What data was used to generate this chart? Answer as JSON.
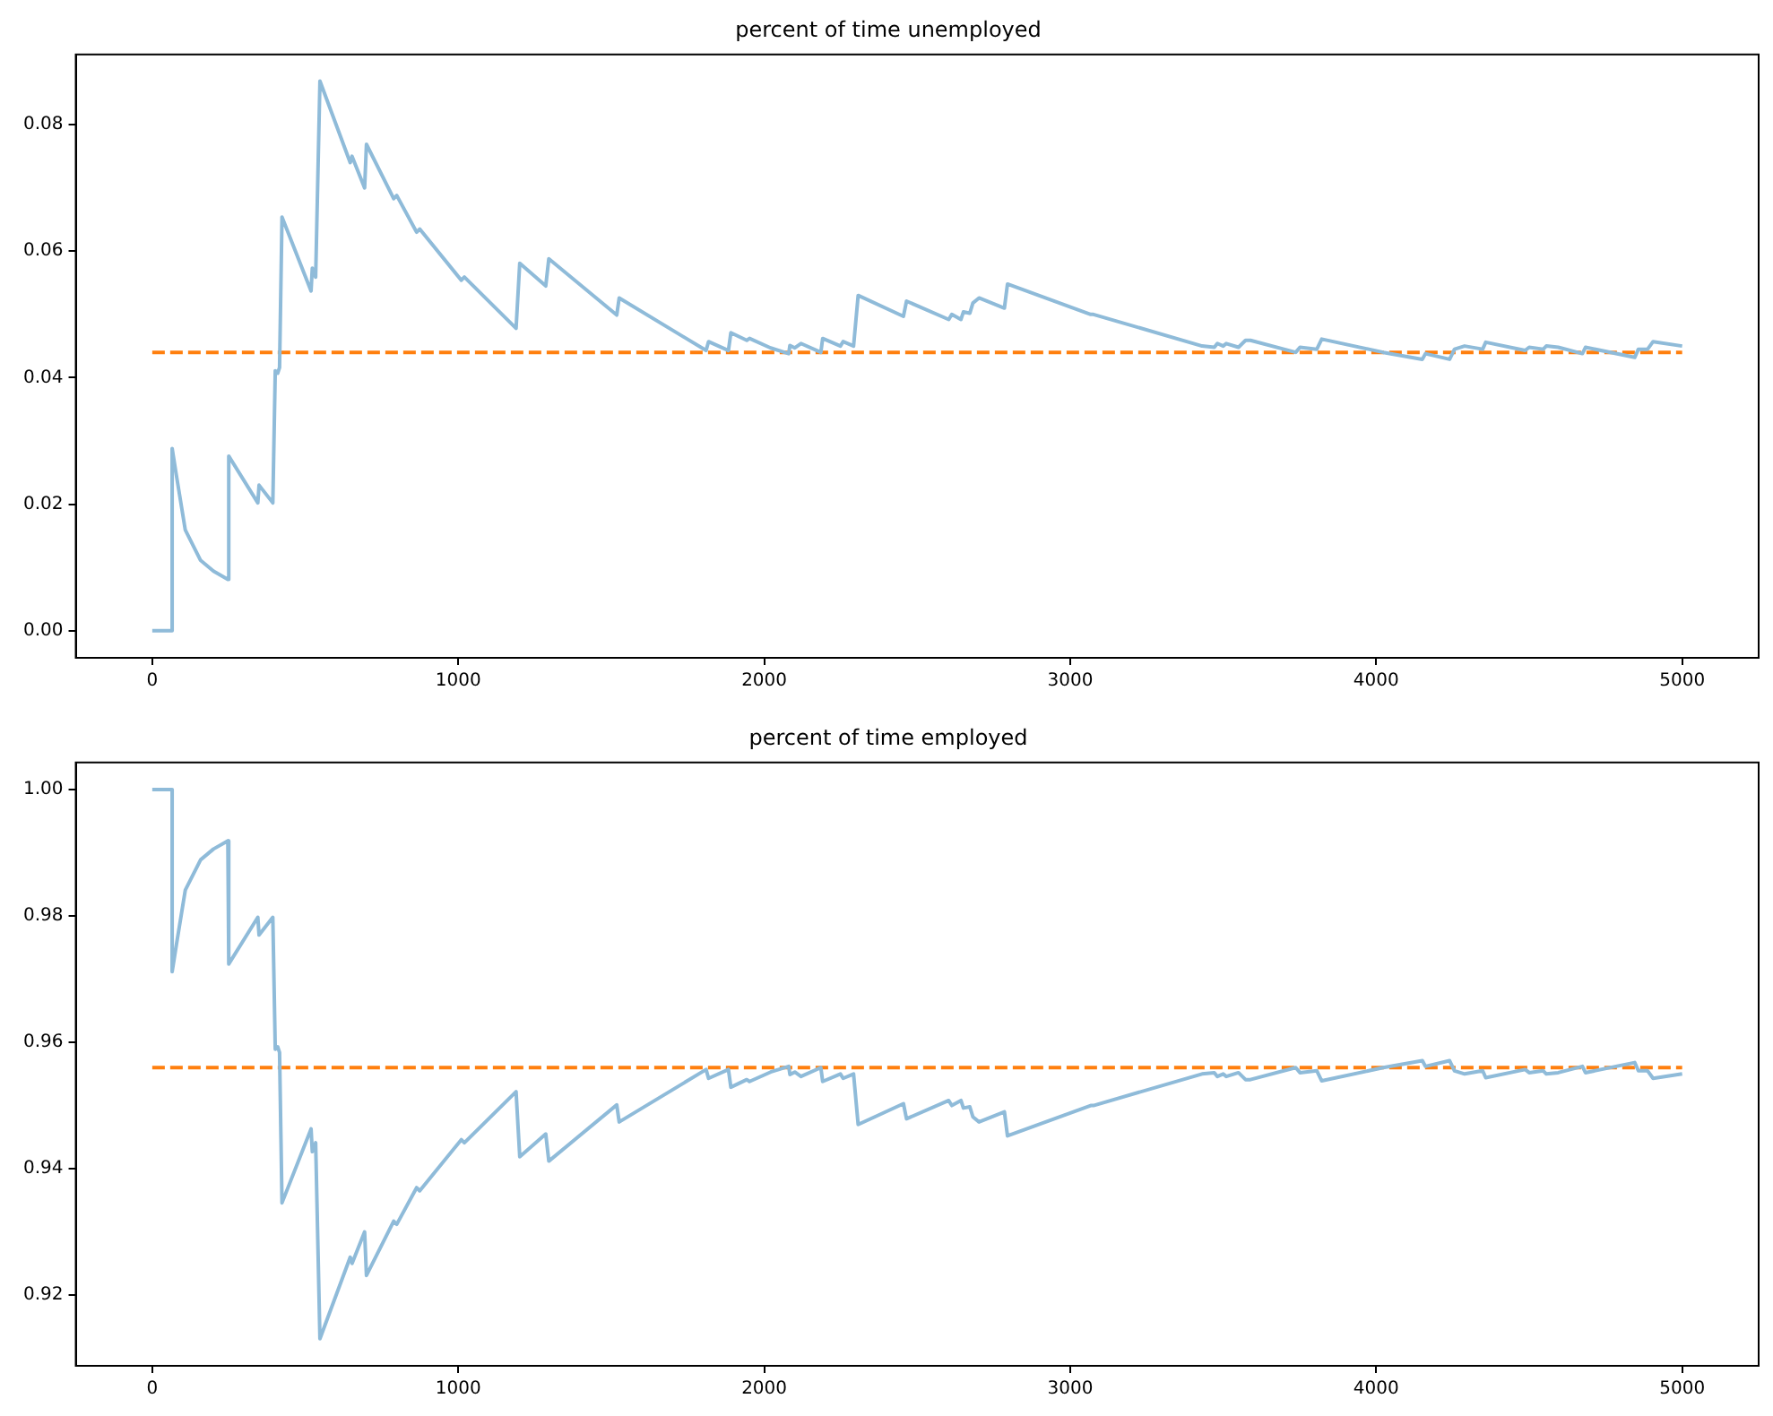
{
  "chart_data": [
    {
      "type": "line",
      "title": "percent of time unemployed",
      "x": [
        0,
        65,
        65,
        79,
        108,
        158,
        200,
        247,
        250,
        345,
        349,
        394,
        402,
        410,
        416,
        424,
        519,
        523,
        534,
        548,
        647,
        653,
        694,
        700,
        789,
        799,
        864,
        874,
        1010,
        1020,
        1189,
        1201,
        1286,
        1296,
        1518,
        1526,
        1810,
        1818,
        1883,
        1891,
        1943,
        1952,
        2021,
        2080,
        2084,
        2100,
        2120,
        2185,
        2191,
        2249,
        2258,
        2292,
        2307,
        2455,
        2465,
        2603,
        2613,
        2643,
        2651,
        2672,
        2682,
        2702,
        2785,
        2795,
        3067,
        3076,
        3431,
        3471,
        3481,
        3500,
        3510,
        3550,
        3573,
        3589,
        3737,
        3751,
        3806,
        3822,
        4023,
        4151,
        4161,
        4240,
        4256,
        4289,
        4348,
        4358,
        4487,
        4500,
        4546,
        4556,
        4595,
        4674,
        4684,
        4845,
        4857,
        4887,
        4905,
        5000
      ],
      "series": [
        {
          "color": "#8fbbd9",
          "values": [
            0,
            0,
            0.0288,
            0.0245,
            0.0159,
            0.0111,
            0.0094,
            0.0081,
            0.0276,
            0.0202,
            0.023,
            0.0202,
            0.0411,
            0.0407,
            0.0416,
            0.0654,
            0.0537,
            0.0573,
            0.0559,
            0.0869,
            0.074,
            0.075,
            0.07,
            0.0769,
            0.0683,
            0.0688,
            0.063,
            0.0635,
            0.0554,
            0.0559,
            0.0478,
            0.0581,
            0.0545,
            0.0588,
            0.0499,
            0.0526,
            0.0443,
            0.0457,
            0.0443,
            0.0471,
            0.0459,
            0.0462,
            0.0447,
            0.0438,
            0.0451,
            0.0447,
            0.0454,
            0.044,
            0.0462,
            0.045,
            0.0457,
            0.045,
            0.053,
            0.0497,
            0.0521,
            0.0492,
            0.05,
            0.0492,
            0.0504,
            0.0502,
            0.0518,
            0.0526,
            0.051,
            0.0548,
            0.05,
            0.05,
            0.045,
            0.0448,
            0.0454,
            0.045,
            0.0454,
            0.0448,
            0.0459,
            0.0459,
            0.044,
            0.0448,
            0.0445,
            0.0461,
            0.044,
            0.0429,
            0.0438,
            0.0429,
            0.0445,
            0.045,
            0.0445,
            0.0456,
            0.0443,
            0.0448,
            0.0445,
            0.045,
            0.0448,
            0.0438,
            0.0448,
            0.0432,
            0.0445,
            0.0445,
            0.0457,
            0.045
          ]
        },
        {
          "color": "#ff7f0e",
          "line_style": "dashed",
          "values": [
            0.044,
            0.044,
            0.044,
            0.044,
            0.044,
            0.044,
            0.044,
            0.044,
            0.044,
            0.044,
            0.044,
            0.044,
            0.044,
            0.044,
            0.044,
            0.044,
            0.044,
            0.044,
            0.044,
            0.044,
            0.044,
            0.044,
            0.044,
            0.044,
            0.044,
            0.044,
            0.044,
            0.044,
            0.044,
            0.044,
            0.044,
            0.044,
            0.044,
            0.044,
            0.044,
            0.044,
            0.044,
            0.044,
            0.044,
            0.044,
            0.044,
            0.044,
            0.044,
            0.044,
            0.044,
            0.044,
            0.044,
            0.044,
            0.044,
            0.044,
            0.044,
            0.044,
            0.044,
            0.044,
            0.044,
            0.044,
            0.044,
            0.044,
            0.044,
            0.044,
            0.044,
            0.044,
            0.044,
            0.044,
            0.044,
            0.044,
            0.044,
            0.044,
            0.044,
            0.044,
            0.044,
            0.044,
            0.044,
            0.044,
            0.044,
            0.044,
            0.044,
            0.044,
            0.044,
            0.044,
            0.044,
            0.044,
            0.044,
            0.044,
            0.044,
            0.044,
            0.044,
            0.044,
            0.044,
            0.044,
            0.044,
            0.044,
            0.044,
            0.044,
            0.044,
            0.044,
            0.044,
            0.044
          ]
        }
      ],
      "xlim": [
        -250,
        5250
      ],
      "xticks": [
        0,
        1000,
        2000,
        3000,
        4000,
        5000
      ],
      "ylim": [
        -0.0043,
        0.0911
      ],
      "yticks": [
        {
          "value": 0,
          "label": "0.00"
        },
        {
          "value": 0.02,
          "label": "0.02"
        },
        {
          "value": 0.04,
          "label": "0.04"
        },
        {
          "value": 0.06,
          "label": "0.06"
        },
        {
          "value": 0.08,
          "label": "0.08"
        }
      ],
      "grid": false,
      "legend": false
    },
    {
      "type": "line",
      "title": "percent of time employed",
      "x": [
        0,
        65,
        65,
        79,
        108,
        158,
        200,
        247,
        250,
        345,
        349,
        394,
        402,
        410,
        416,
        424,
        519,
        523,
        534,
        548,
        647,
        653,
        694,
        700,
        789,
        799,
        864,
        874,
        1010,
        1020,
        1189,
        1201,
        1286,
        1296,
        1518,
        1526,
        1810,
        1818,
        1883,
        1891,
        1943,
        1952,
        2021,
        2080,
        2084,
        2100,
        2120,
        2185,
        2191,
        2249,
        2258,
        2292,
        2307,
        2455,
        2465,
        2603,
        2613,
        2643,
        2651,
        2672,
        2682,
        2702,
        2785,
        2795,
        3067,
        3076,
        3431,
        3471,
        3481,
        3500,
        3510,
        3550,
        3573,
        3589,
        3737,
        3751,
        3806,
        3822,
        4023,
        4151,
        4161,
        4240,
        4256,
        4289,
        4348,
        4358,
        4487,
        4500,
        4546,
        4556,
        4595,
        4674,
        4684,
        4845,
        4857,
        4887,
        4905,
        5000
      ],
      "series": [
        {
          "color": "#8fbbd9",
          "values": [
            1,
            1,
            0.9712,
            0.9755,
            0.9841,
            0.9889,
            0.9906,
            0.9919,
            0.9724,
            0.9798,
            0.977,
            0.9798,
            0.9589,
            0.9593,
            0.9584,
            0.9346,
            0.9463,
            0.9427,
            0.9441,
            0.9131,
            0.926,
            0.925,
            0.93,
            0.9231,
            0.9317,
            0.9312,
            0.937,
            0.9365,
            0.9446,
            0.9441,
            0.9522,
            0.9419,
            0.9455,
            0.9412,
            0.9501,
            0.9474,
            0.9557,
            0.9543,
            0.9557,
            0.9529,
            0.9541,
            0.9538,
            0.9553,
            0.9562,
            0.9549,
            0.9553,
            0.9546,
            0.956,
            0.9538,
            0.955,
            0.9543,
            0.955,
            0.947,
            0.9503,
            0.9479,
            0.9508,
            0.95,
            0.9508,
            0.9496,
            0.9498,
            0.9482,
            0.9474,
            0.949,
            0.9452,
            0.95,
            0.95,
            0.955,
            0.9552,
            0.9546,
            0.955,
            0.9546,
            0.9552,
            0.9541,
            0.9541,
            0.956,
            0.9552,
            0.9555,
            0.9539,
            0.956,
            0.9571,
            0.9562,
            0.9571,
            0.9555,
            0.955,
            0.9555,
            0.9544,
            0.9557,
            0.9552,
            0.9555,
            0.955,
            0.9552,
            0.9562,
            0.9552,
            0.9568,
            0.9555,
            0.9555,
            0.9543,
            0.955
          ]
        },
        {
          "color": "#ff7f0e",
          "line_style": "dashed",
          "values": [
            0.956,
            0.956,
            0.956,
            0.956,
            0.956,
            0.956,
            0.956,
            0.956,
            0.956,
            0.956,
            0.956,
            0.956,
            0.956,
            0.956,
            0.956,
            0.956,
            0.956,
            0.956,
            0.956,
            0.956,
            0.956,
            0.956,
            0.956,
            0.956,
            0.956,
            0.956,
            0.956,
            0.956,
            0.956,
            0.956,
            0.956,
            0.956,
            0.956,
            0.956,
            0.956,
            0.956,
            0.956,
            0.956,
            0.956,
            0.956,
            0.956,
            0.956,
            0.956,
            0.956,
            0.956,
            0.956,
            0.956,
            0.956,
            0.956,
            0.956,
            0.956,
            0.956,
            0.956,
            0.956,
            0.956,
            0.956,
            0.956,
            0.956,
            0.956,
            0.956,
            0.956,
            0.956,
            0.956,
            0.956,
            0.956,
            0.956,
            0.956,
            0.956,
            0.956,
            0.956,
            0.956,
            0.956,
            0.956,
            0.956,
            0.956,
            0.956,
            0.956,
            0.956,
            0.956,
            0.956,
            0.956,
            0.956,
            0.956,
            0.956,
            0.956,
            0.956,
            0.956,
            0.956,
            0.956,
            0.956,
            0.956,
            0.956,
            0.956,
            0.956,
            0.956,
            0.956,
            0.956,
            0.956
          ]
        }
      ],
      "xlim": [
        -250,
        5250
      ],
      "xticks": [
        0,
        1000,
        2000,
        3000,
        4000,
        5000
      ],
      "ylim": [
        0.9088,
        1.0043
      ],
      "yticks": [
        {
          "value": 0.92,
          "label": "0.92"
        },
        {
          "value": 0.94,
          "label": "0.94"
        },
        {
          "value": 0.96,
          "label": "0.96"
        },
        {
          "value": 0.98,
          "label": "0.98"
        },
        {
          "value": 1,
          "label": "1.00"
        }
      ],
      "grid": false,
      "legend": false
    }
  ]
}
